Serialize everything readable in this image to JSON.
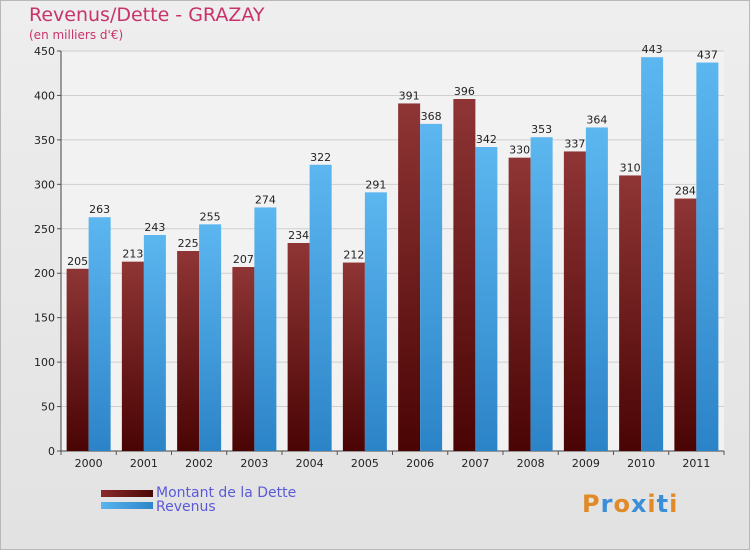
{
  "chart_data": {
    "type": "bar",
    "title": "Revenus/Dette - GRAZAY",
    "subtitle": "(en milliers d'€)",
    "categories": [
      "2000",
      "2001",
      "2002",
      "2003",
      "2004",
      "2005",
      "2006",
      "2007",
      "2008",
      "2009",
      "2010",
      "2011"
    ],
    "series": [
      {
        "name": "Montant de la Dette",
        "values": [
          205,
          213,
          225,
          207,
          234,
          212,
          391,
          396,
          330,
          337,
          310,
          284
        ],
        "color": "#7a1f22"
      },
      {
        "name": "Revenus",
        "values": [
          263,
          243,
          255,
          274,
          322,
          291,
          368,
          342,
          353,
          364,
          443,
          437
        ],
        "color": "#4aa3e0"
      }
    ],
    "ylim": [
      0,
      450
    ],
    "yticks": [
      0,
      50,
      100,
      150,
      200,
      250,
      300,
      350,
      400,
      450
    ],
    "grid": true,
    "legend_position": "bottom-left"
  },
  "brand": {
    "text": "Proxiti",
    "letter_colors": [
      "#e08a2a",
      "#3a8fd8",
      "#e08a2a",
      "#3a8fd8",
      "#e08a2a",
      "#3a8fd8",
      "#e08a2a"
    ]
  }
}
